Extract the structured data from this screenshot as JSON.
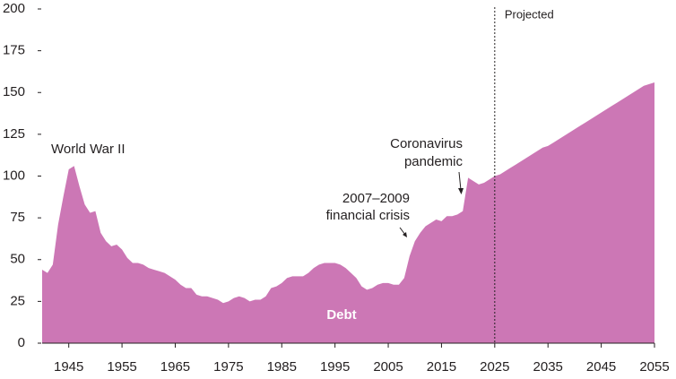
{
  "chart_data": {
    "type": "area",
    "x": [
      1940,
      1941,
      1942,
      1943,
      1944,
      1945,
      1946,
      1947,
      1948,
      1949,
      1950,
      1951,
      1952,
      1953,
      1954,
      1955,
      1956,
      1957,
      1958,
      1959,
      1960,
      1961,
      1962,
      1963,
      1964,
      1965,
      1966,
      1967,
      1968,
      1969,
      1970,
      1971,
      1972,
      1973,
      1974,
      1975,
      1976,
      1977,
      1978,
      1979,
      1980,
      1981,
      1982,
      1983,
      1984,
      1985,
      1986,
      1987,
      1988,
      1989,
      1990,
      1991,
      1992,
      1993,
      1994,
      1995,
      1996,
      1997,
      1998,
      1999,
      2000,
      2001,
      2002,
      2003,
      2004,
      2005,
      2006,
      2007,
      2008,
      2009,
      2010,
      2011,
      2012,
      2013,
      2014,
      2015,
      2016,
      2017,
      2018,
      2019,
      2020,
      2021,
      2022,
      2023,
      2024,
      2025,
      2026,
      2027,
      2028,
      2029,
      2030,
      2031,
      2032,
      2033,
      2034,
      2035,
      2036,
      2037,
      2038,
      2039,
      2040,
      2041,
      2042,
      2043,
      2044,
      2045,
      2046,
      2047,
      2048,
      2049,
      2050,
      2051,
      2052,
      2053,
      2054,
      2055
    ],
    "series": [
      {
        "name": "Debt",
        "color": "#cc77b5",
        "values": [
          44,
          42,
          47,
          71,
          88,
          104,
          106,
          94,
          83,
          78,
          79,
          66,
          61,
          58,
          59,
          56,
          51,
          48,
          48,
          47,
          45,
          44,
          43,
          42,
          40,
          38,
          35,
          33,
          33,
          29,
          28,
          28,
          27,
          26,
          24,
          25,
          27,
          28,
          27,
          25,
          26,
          26,
          28,
          33,
          34,
          36,
          39,
          40,
          40,
          40,
          42,
          45,
          47,
          48,
          48,
          48,
          47,
          45,
          42,
          39,
          34,
          32,
          33,
          35,
          36,
          36,
          35,
          35,
          39,
          52,
          61,
          66,
          70,
          72,
          74,
          73,
          76,
          76,
          77,
          79,
          99,
          97,
          95,
          96,
          98,
          100,
          101,
          103,
          105,
          107,
          109,
          111,
          113,
          115,
          117,
          118,
          120,
          122,
          124,
          126,
          128,
          130,
          132,
          134,
          136,
          138,
          140,
          142,
          144,
          146,
          148,
          150,
          152,
          154,
          155,
          156
        ]
      }
    ],
    "xlim": [
      1940,
      2055
    ],
    "ylim": [
      0,
      200
    ],
    "xticks": [
      1945,
      1955,
      1965,
      1975,
      1985,
      1995,
      2005,
      2015,
      2025,
      2035,
      2045,
      2055
    ],
    "yticks": [
      0,
      25,
      50,
      75,
      100,
      125,
      150,
      175,
      200
    ],
    "projection_start": 2025,
    "projection_label": "Projected",
    "annotations": {
      "war": "World War II",
      "crisis": [
        "2007–2009",
        "financial crisis"
      ],
      "pandemic": [
        "Coronavirus",
        "pandemic"
      ]
    }
  }
}
